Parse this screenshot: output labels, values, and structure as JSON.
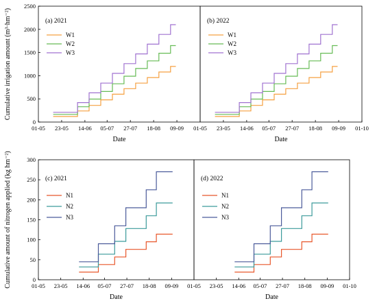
{
  "figure": {
    "background": "#ffffff",
    "text_color": "#000000"
  },
  "chart_data": [
    {
      "type": "line",
      "step": true,
      "panel_label": "(a)  2021",
      "xlabel": "Date",
      "ylabel": "Cumulative irrigation  amount (m³·hm⁻²)",
      "x_ticks": [
        "01-05",
        "23-05",
        "14-06",
        "05-07",
        "27-07",
        "18-08",
        "09-09"
      ],
      "x_range": [
        "01-05",
        "01-10"
      ],
      "ylim": [
        0,
        2500
      ],
      "y_ticks": [
        0,
        500,
        1000,
        1500,
        2000,
        2500
      ],
      "legend_position": "top-left",
      "x_dates": [
        "05-15",
        "06-07",
        "06-18",
        "06-29",
        "07-10",
        "07-21",
        "08-01",
        "08-12",
        "08-23",
        "09-03"
      ],
      "series": [
        {
          "name": "W1",
          "color": "#f5a040",
          "values": [
            120,
            240,
            360,
            480,
            600,
            720,
            840,
            960,
            1080,
            1200
          ]
        },
        {
          "name": "W2",
          "color": "#66bb55",
          "values": [
            165,
            330,
            495,
            660,
            825,
            990,
            1155,
            1320,
            1485,
            1650
          ]
        },
        {
          "name": "W3",
          "color": "#a072d0",
          "values": [
            210,
            420,
            630,
            840,
            1050,
            1260,
            1470,
            1680,
            1890,
            2100
          ]
        }
      ]
    },
    {
      "type": "line",
      "step": true,
      "panel_label": "(b)  2022",
      "xlabel": "Date",
      "x_ticks": [
        "01-05",
        "23-05",
        "14-06",
        "05-07",
        "27-07",
        "18-08",
        "09-09",
        "01-10"
      ],
      "x_range": [
        "01-05",
        "01-10"
      ],
      "ylim": [
        0,
        2500
      ],
      "legend_position": "top-left",
      "x_dates": [
        "05-15",
        "06-07",
        "06-18",
        "06-29",
        "07-10",
        "07-21",
        "08-01",
        "08-12",
        "08-23",
        "09-03"
      ],
      "series": [
        {
          "name": "W1",
          "color": "#f5a040",
          "values": [
            120,
            240,
            360,
            480,
            600,
            720,
            840,
            960,
            1080,
            1200
          ]
        },
        {
          "name": "W2",
          "color": "#66bb55",
          "values": [
            165,
            330,
            495,
            660,
            825,
            990,
            1155,
            1320,
            1485,
            1650
          ]
        },
        {
          "name": "W3",
          "color": "#a072d0",
          "values": [
            210,
            420,
            630,
            840,
            1050,
            1260,
            1470,
            1680,
            1890,
            2100
          ]
        }
      ]
    },
    {
      "type": "line",
      "step": true,
      "panel_label": "(c)  2021",
      "xlabel": "Date",
      "ylabel": "Cumulative amount of nitrogen applied (kg hm⁻²)",
      "x_ticks": [
        "01-05",
        "23-05",
        "14-06",
        "05-07",
        "27-07",
        "18-08",
        "09-09"
      ],
      "x_range": [
        "01-05",
        "01-10"
      ],
      "ylim": [
        0,
        300
      ],
      "y_ticks": [
        0,
        50,
        100,
        150,
        200,
        250,
        300
      ],
      "legend_position": "upper-left",
      "x_dates": [
        "06-10",
        "06-29",
        "07-15",
        "07-26",
        "08-15",
        "08-25",
        "09-05"
      ],
      "series": [
        {
          "name": "N1",
          "color": "#e8562a",
          "values": [
            19,
            38,
            57,
            76,
            95,
            114,
            114
          ]
        },
        {
          "name": "N2",
          "color": "#3a9a9a",
          "values": [
            32,
            64,
            96,
            128,
            160,
            192,
            192
          ]
        },
        {
          "name": "N3",
          "color": "#4a5a9a",
          "values": [
            45,
            90,
            135,
            180,
            225,
            270,
            270
          ]
        }
      ]
    },
    {
      "type": "line",
      "step": true,
      "panel_label": "(d)  2022",
      "xlabel": "Date",
      "x_ticks": [
        "01-05",
        "23-05",
        "14-06",
        "05-07",
        "27-07",
        "18-08",
        "09-09",
        "01-10"
      ],
      "x_range": [
        "01-05",
        "01-10"
      ],
      "ylim": [
        0,
        300
      ],
      "legend_position": "upper-left",
      "x_dates": [
        "06-10",
        "06-29",
        "07-15",
        "07-26",
        "08-15",
        "08-25",
        "09-05"
      ],
      "series": [
        {
          "name": "N1",
          "color": "#e8562a",
          "values": [
            19,
            38,
            57,
            76,
            95,
            114,
            114
          ]
        },
        {
          "name": "N2",
          "color": "#3a9a9a",
          "values": [
            32,
            64,
            96,
            128,
            160,
            192,
            192
          ]
        },
        {
          "name": "N3",
          "color": "#4a5a9a",
          "values": [
            45,
            90,
            135,
            180,
            225,
            270,
            270
          ]
        }
      ]
    }
  ]
}
